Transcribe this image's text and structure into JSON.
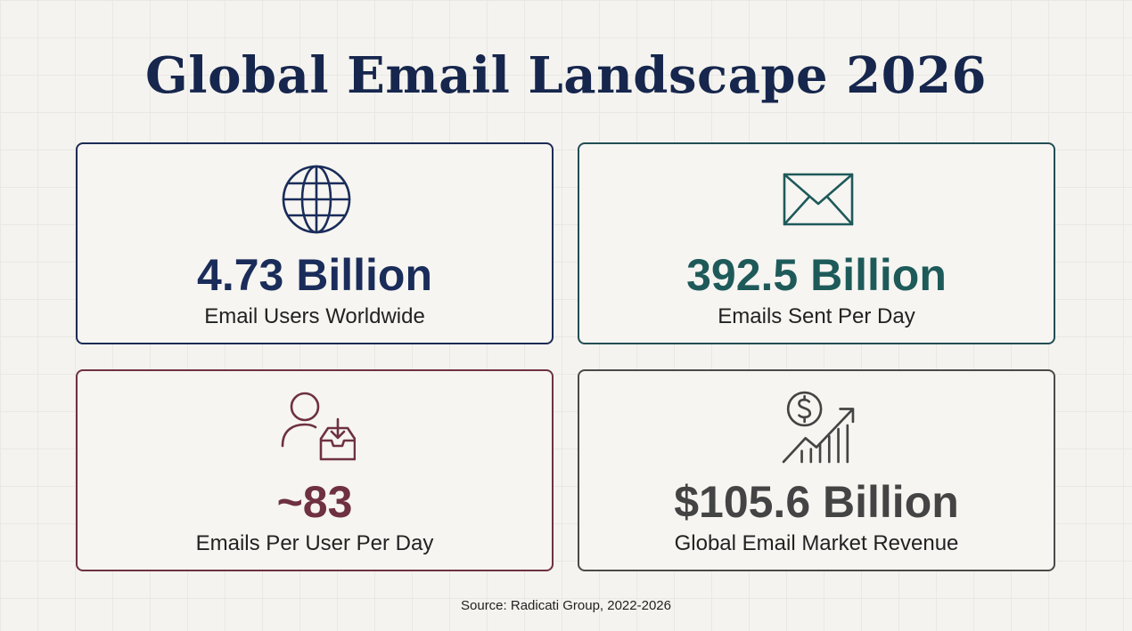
{
  "title": "Global Email Landscape 2026",
  "cards": [
    {
      "value": "4.73 Billion",
      "label": "Email Users Worldwide"
    },
    {
      "value": "392.5 Billion",
      "label": "Emails Sent Per Day"
    },
    {
      "value": "~83",
      "label": "Emails Per User Per Day"
    },
    {
      "value": "$105.6 Billion",
      "label": "Global Email Market Revenue"
    }
  ],
  "source": "Source: Radicati Group, 2022-2026"
}
